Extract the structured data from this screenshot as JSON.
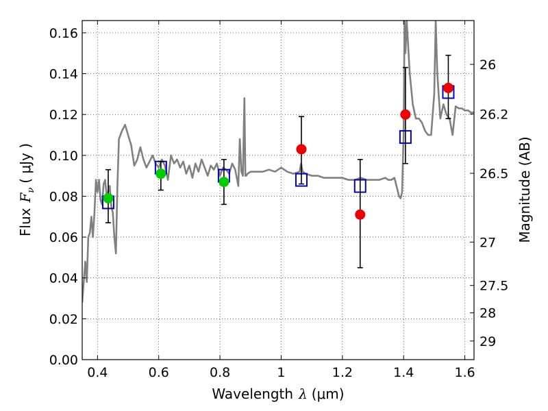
{
  "chart_data": {
    "type": "scatter",
    "xlabel_prefix": "Wavelength",
    "xlabel_symbol": "λ",
    "xlabel_unit": "(μm)",
    "ylabel_prefix": "Flux",
    "ylabel_symbol": "F",
    "ylabel_subscript": "ν",
    "ylabel_unit": "( μJy )",
    "y2label": "Magnitude (AB)",
    "xlim": [
      0.35,
      1.63
    ],
    "ylim": [
      0.0,
      0.166
    ],
    "grid": true,
    "x_ticks": [
      0.4,
      0.6,
      0.8,
      1.0,
      1.2,
      1.4,
      1.6
    ],
    "x_tick_labels": [
      "0.4",
      "0.6",
      "0.8",
      "1",
      "1.2",
      "1.4",
      "1.6"
    ],
    "y_ticks": [
      0.0,
      0.02,
      0.04,
      0.06,
      0.08,
      0.1,
      0.12,
      0.14,
      0.16
    ],
    "y_tick_labels": [
      "0.00",
      "0.02",
      "0.04",
      "0.06",
      "0.08",
      "0.10",
      "0.12",
      "0.14",
      "0.16"
    ],
    "y2_ticks": [
      26,
      26.2,
      26.5,
      27,
      27.5,
      28,
      29
    ],
    "y2_tick_labels": [
      "26",
      "26.2",
      "26.5",
      "27",
      "27.5",
      "28",
      "29"
    ],
    "series": [
      {
        "name": "model_spectrum",
        "kind": "line",
        "color": "#808080",
        "x": [
          0.35,
          0.36,
          0.365,
          0.37,
          0.375,
          0.38,
          0.385,
          0.39,
          0.395,
          0.4,
          0.405,
          0.41,
          0.415,
          0.42,
          0.425,
          0.43,
          0.435,
          0.44,
          0.445,
          0.45,
          0.455,
          0.46,
          0.465,
          0.47,
          0.48,
          0.49,
          0.5,
          0.51,
          0.52,
          0.53,
          0.54,
          0.55,
          0.56,
          0.57,
          0.58,
          0.59,
          0.6,
          0.61,
          0.62,
          0.63,
          0.64,
          0.65,
          0.66,
          0.67,
          0.68,
          0.69,
          0.7,
          0.71,
          0.72,
          0.73,
          0.74,
          0.75,
          0.76,
          0.77,
          0.78,
          0.79,
          0.8,
          0.81,
          0.82,
          0.83,
          0.84,
          0.85,
          0.86,
          0.865,
          0.87,
          0.875,
          0.88,
          0.883,
          0.886,
          0.89,
          0.9,
          0.92,
          0.94,
          0.96,
          0.98,
          1.0,
          1.02,
          1.04,
          1.06,
          1.065,
          1.07,
          1.08,
          1.1,
          1.12,
          1.14,
          1.16,
          1.18,
          1.2,
          1.22,
          1.24,
          1.26,
          1.28,
          1.3,
          1.32,
          1.34,
          1.35,
          1.36,
          1.37,
          1.38,
          1.385,
          1.39,
          1.395,
          1.4,
          1.403,
          1.406,
          1.41,
          1.42,
          1.43,
          1.44,
          1.45,
          1.46,
          1.47,
          1.48,
          1.49,
          1.5,
          1.505,
          1.51,
          1.52,
          1.53,
          1.54,
          1.55,
          1.56,
          1.57,
          1.58,
          1.59,
          1.6,
          1.61,
          1.62,
          1.63
        ],
        "y": [
          0.028,
          0.048,
          0.038,
          0.06,
          0.062,
          0.07,
          0.06,
          0.072,
          0.088,
          0.082,
          0.088,
          0.078,
          0.076,
          0.086,
          0.088,
          0.08,
          0.082,
          0.085,
          0.075,
          0.072,
          0.06,
          0.052,
          0.085,
          0.108,
          0.112,
          0.115,
          0.11,
          0.105,
          0.095,
          0.098,
          0.104,
          0.098,
          0.094,
          0.097,
          0.1,
          0.096,
          0.094,
          0.098,
          0.095,
          0.088,
          0.1,
          0.096,
          0.098,
          0.094,
          0.097,
          0.091,
          0.095,
          0.089,
          0.096,
          0.092,
          0.098,
          0.094,
          0.09,
          0.095,
          0.093,
          0.096,
          0.09,
          0.094,
          0.093,
          0.091,
          0.096,
          0.093,
          0.085,
          0.108,
          0.092,
          0.09,
          0.128,
          0.09,
          0.09,
          0.091,
          0.092,
          0.092,
          0.092,
          0.093,
          0.092,
          0.094,
          0.092,
          0.091,
          0.092,
          0.096,
          0.092,
          0.091,
          0.09,
          0.09,
          0.089,
          0.089,
          0.089,
          0.089,
          0.088,
          0.088,
          0.089,
          0.088,
          0.088,
          0.088,
          0.089,
          0.088,
          0.088,
          0.089,
          0.083,
          0.08,
          0.079,
          0.082,
          0.11,
          0.166,
          0.15,
          0.166,
          0.14,
          0.125,
          0.118,
          0.118,
          0.116,
          0.112,
          0.11,
          0.11,
          0.13,
          0.166,
          0.14,
          0.118,
          0.125,
          0.12,
          0.118,
          0.11,
          0.124,
          0.123,
          0.123,
          0.122,
          0.122,
          0.121,
          0.121
        ]
      },
      {
        "name": "model_photometry",
        "kind": "square",
        "color": "#0000cc",
        "x": [
          0.435,
          0.607,
          0.813,
          1.066,
          1.258,
          1.406,
          1.546
        ],
        "y": [
          0.077,
          0.094,
          0.09,
          0.088,
          0.085,
          0.109,
          0.131
        ]
      },
      {
        "name": "observed_optical",
        "kind": "circle",
        "color": "#00cc00",
        "x": [
          0.435,
          0.607,
          0.813
        ],
        "y": [
          0.079,
          0.091,
          0.087
        ],
        "yerr_low": [
          0.067,
          0.083,
          0.076
        ],
        "yerr_high": [
          0.093,
          0.097,
          0.098
        ]
      },
      {
        "name": "observed_nir",
        "kind": "circle",
        "color": "#ee0000",
        "x": [
          1.066,
          1.258,
          1.406,
          1.546
        ],
        "y": [
          0.103,
          0.071,
          0.12,
          0.133
        ],
        "yerr_low": [
          0.086,
          0.045,
          0.096,
          0.118
        ],
        "yerr_high": [
          0.119,
          0.098,
          0.143,
          0.149
        ]
      }
    ]
  }
}
